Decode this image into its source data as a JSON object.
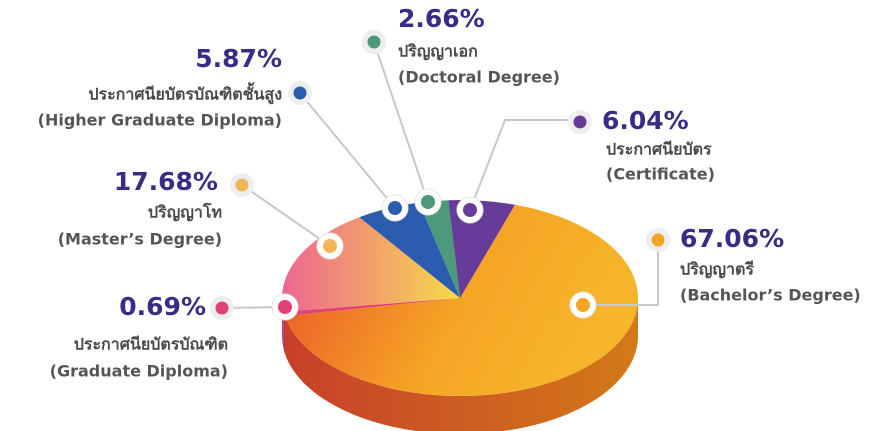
{
  "chart_data": {
    "type": "pie",
    "categories": [
      "ปริญญาตรี",
      "ประกาศนียบัตรบัณฑิต",
      "ปริญญาโท",
      "ประกาศนียบัตรบัณฑิตชั้นสูง",
      "ปริญญาเอก",
      "ประกาศนียบัตร"
    ],
    "categories_en": [
      "(Bachelor’s Degree)",
      "(Graduate Diploma)",
      "(Master’s Degree)",
      "(Higher Graduate Diploma)",
      "(Doctoral Degree)",
      "(Certificate)"
    ],
    "values": [
      67.06,
      0.69,
      17.68,
      5.87,
      2.66,
      6.04
    ],
    "value_labels": [
      "67.06%",
      "0.69%",
      "17.68%",
      "5.87%",
      "2.66%",
      "6.04%"
    ],
    "colors": [
      "#f5a524",
      "#e2407a",
      "#f2b65a",
      "#2c5cb0",
      "#4c9a7a",
      "#673c98"
    ]
  }
}
